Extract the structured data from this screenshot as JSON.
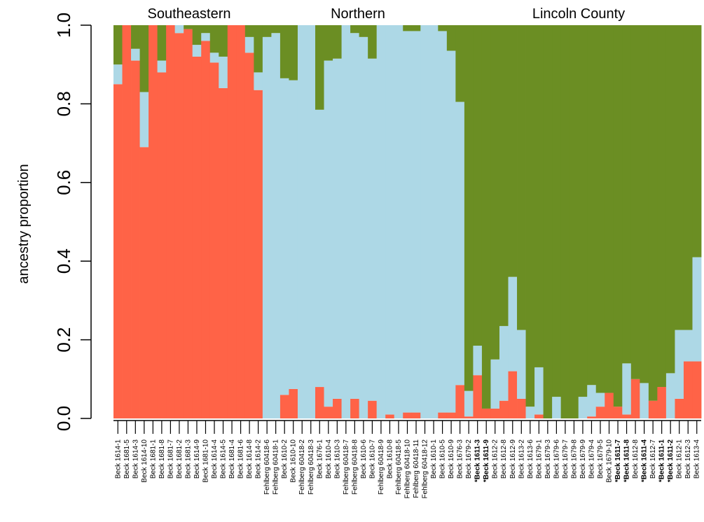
{
  "chart_data": {
    "type": "stacked-bar",
    "y_label": "ancestry proportion",
    "groups": [
      "Southeastern",
      "Northern",
      "Lincoln County"
    ],
    "categories": [
      "Beck 1614-1",
      "Beck 1681-5",
      "Beck 1614-3",
      "Beck 1614-10",
      "Beck 1681-1",
      "Beck 1681-8",
      "Beck 1681-7",
      "Beck 1681-2",
      "Beck 1681-3",
      "Beck 1614-9",
      "Beck 1681-10",
      "Beck 1614-4",
      "Beck 1614-5",
      "Beck 1681-4",
      "Beck 1681-6",
      "Beck 1614-8",
      "Beck 1614-2",
      "Fehlberg 60418-6",
      "Fehlberg 60418-1",
      "Beck 1610-2",
      "Beck 1610-10",
      "Fehlberg 60418-2",
      "Fehlberg 60418-3",
      "Beck 1676-1",
      "Beck 1610-4",
      "Beck 1610-3",
      "Fehlberg 60418-7",
      "Fehlberg 60418-8",
      "Beck 1610-6",
      "Beck 1610-7",
      "Fehlberg 60418-9",
      "Beck 1610-8",
      "Fehlberg 60418-5",
      "Fehlberg 60418-10",
      "Fehlberg 60418-11",
      "Fehlberg 60418-12",
      "Beck 1610-1",
      "Beck 1610-5",
      "Beck 1610-9",
      "Beck 1676-3",
      "Beck 1679-2",
      "*Beck 1611-3",
      "*Beck 1611-9",
      "Beck 1612-2",
      "Beck 1612-8",
      "Beck 1612-9",
      "Beck 1613-2",
      "Beck 1613-6",
      "Beck 1679-1",
      "Beck 1679-3",
      "Beck 1679-6",
      "Beck 1679-7",
      "Beck 1679-8",
      "Beck 1679-9",
      "Beck 1679-4",
      "Beck 1679-5",
      "Beck 1679-10",
      "*Beck 1611-7",
      "*Beck 1611-8",
      "Beck 1612-8",
      "*Beck 1611-4",
      "Beck 1612-7",
      "*Beck 1611-1",
      "*Beck 1611-2",
      "Beck 1612-1",
      "Beck 1612-3",
      "Beck 1613-4"
    ],
    "series": [
      {
        "color": "#ff6347",
        "values": [
          0.85,
          1,
          0.91,
          0.69,
          1,
          0.88,
          1,
          0.98,
          0.99,
          0.92,
          0.96,
          0.905,
          0.84,
          1,
          1,
          0.93,
          0.835,
          0,
          0,
          0.06,
          0.075,
          0,
          0,
          0.08,
          0.03,
          0.05,
          0,
          0.05,
          0,
          0.045,
          0,
          0.01,
          0,
          0.015,
          0.015,
          0,
          0,
          0.015,
          0.015,
          0.085,
          0.005,
          0.11,
          0.025,
          0.025,
          0.045,
          0.12,
          0.05,
          0,
          0.01,
          0,
          0,
          0,
          0,
          0,
          0.005,
          0.03,
          0.065,
          0.03,
          0.01,
          0.1,
          0,
          0.045,
          0.08,
          0,
          0.05,
          0.145,
          0.145
        ]
      },
      {
        "color": "#add8e6",
        "values": [
          0.05,
          0,
          0.03,
          0.14,
          0,
          0.03,
          0,
          0.02,
          0,
          0.03,
          0.02,
          0.025,
          0.08,
          0,
          0,
          0.04,
          0.045,
          0.97,
          0.98,
          0.805,
          0.785,
          1,
          1,
          0.705,
          0.88,
          0.865,
          1,
          0.93,
          0.97,
          0.87,
          1,
          0.99,
          1,
          0.97,
          0.97,
          1,
          1,
          0.97,
          0.92,
          0.72,
          0.065,
          0.075,
          0,
          0.125,
          0.19,
          0.24,
          0.175,
          0.03,
          0.12,
          0,
          0.055,
          0,
          0,
          0.055,
          0.08,
          0.035,
          0,
          0,
          0.13,
          0,
          0.09,
          0,
          0,
          0.115,
          0.175,
          0.08,
          0.265
        ]
      },
      {
        "color": "#6b8e23",
        "values": [
          0.1,
          0,
          0.06,
          0.17,
          0,
          0.09,
          0,
          0,
          0.01,
          0.05,
          0.02,
          0.07,
          0.08,
          0,
          0,
          0.03,
          0.12,
          0.03,
          0.02,
          0.135,
          0.14,
          0,
          0,
          0.215,
          0.09,
          0.085,
          0,
          0.02,
          0.03,
          0.085,
          0,
          0,
          0,
          0.015,
          0.015,
          0,
          0,
          0.015,
          0.065,
          0.195,
          0.93,
          0.815,
          0.975,
          0.85,
          0.765,
          0.64,
          0.775,
          0.97,
          0.87,
          1,
          0.945,
          1,
          1,
          0.945,
          0.915,
          0.935,
          0.935,
          0.97,
          0.86,
          0.9,
          0.91,
          0.955,
          0.92,
          0.885,
          0.775,
          0.775,
          0.59
        ]
      }
    ],
    "ylim": [
      0,
      1
    ],
    "yticks": [
      {
        "value": 0,
        "label": "0.0"
      },
      {
        "value": 0.2,
        "label": "0.2"
      },
      {
        "value": 0.4,
        "label": "0.4"
      },
      {
        "value": 0.6,
        "label": "0.6"
      },
      {
        "value": 0.8,
        "label": "0.8"
      },
      {
        "value": 1,
        "label": "1.0"
      }
    ]
  }
}
